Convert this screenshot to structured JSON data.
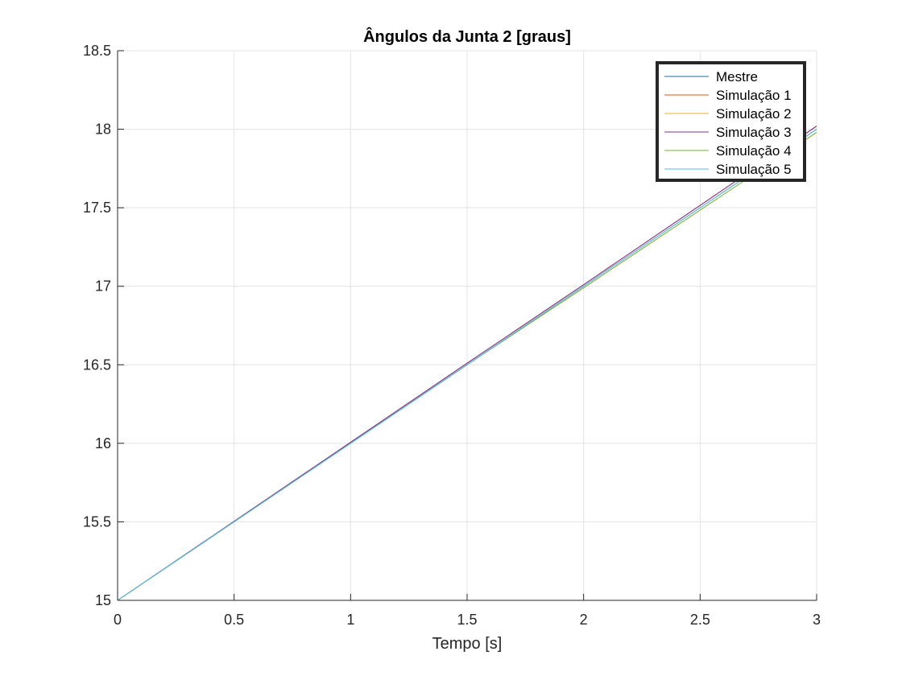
{
  "chart_data": {
    "type": "line",
    "title": "Ângulos da Junta 2 [graus]",
    "xlabel": "Tempo [s]",
    "ylabel": "",
    "xlim": [
      0,
      3
    ],
    "ylim": [
      15,
      18.5
    ],
    "xticks": [
      0,
      0.5,
      1,
      1.5,
      2,
      2.5,
      3
    ],
    "xtick_labels": [
      "0",
      "0.5",
      "1",
      "1.5",
      "2",
      "2.5",
      "3"
    ],
    "yticks": [
      15,
      15.5,
      16,
      16.5,
      17,
      17.5,
      18,
      18.5
    ],
    "ytick_labels": [
      "15",
      "15.5",
      "16",
      "16.5",
      "17",
      "17.5",
      "18",
      "18.5"
    ],
    "grid": true,
    "legend_position": "top-right",
    "series": [
      {
        "name": "Mestre",
        "color": "#0072BD",
        "x": [
          0,
          1.5,
          2,
          3
        ],
        "y": [
          15,
          16.5,
          17,
          18
        ]
      },
      {
        "name": "Simulação 1",
        "color": "#D95319",
        "x": [
          0,
          1.5,
          2,
          3
        ],
        "y": [
          15,
          16.51,
          17.01,
          18.02
        ]
      },
      {
        "name": "Simulação 2",
        "color": "#EDB120",
        "x": [
          0,
          1.5,
          2,
          3
        ],
        "y": [
          15,
          16.5,
          17.0,
          18.0
        ]
      },
      {
        "name": "Simulação 3",
        "color": "#7E2F8E",
        "x": [
          0,
          1.5,
          2,
          3
        ],
        "y": [
          15,
          16.51,
          17.01,
          18.02
        ]
      },
      {
        "name": "Simulação 4",
        "color": "#77AC30",
        "x": [
          0,
          1.5,
          2,
          3
        ],
        "y": [
          15,
          16.5,
          16.99,
          17.98
        ]
      },
      {
        "name": "Simulação 5",
        "color": "#4DBEEE",
        "x": [
          0,
          1.5,
          2,
          3
        ],
        "y": [
          15,
          16.5,
          17.0,
          18.0
        ]
      }
    ]
  }
}
